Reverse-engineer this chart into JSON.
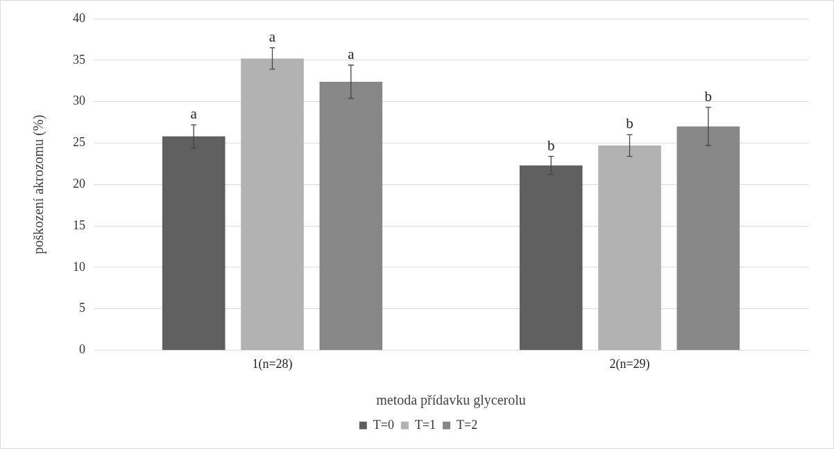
{
  "chart_data": {
    "type": "bar",
    "xlabel": "metoda přídavku glycerolu",
    "ylabel": "poškození akrozomu (%)",
    "categories": [
      "1(n=28)",
      "2(n=29)"
    ],
    "series": [
      {
        "name": "T=0",
        "color": "#5f5f5f",
        "values": [
          25.8,
          22.3
        ],
        "errors": [
          1.4,
          1.1
        ],
        "value_labels": [
          "a",
          "b"
        ]
      },
      {
        "name": "T=1",
        "color": "#b2b2b2",
        "values": [
          35.2,
          24.7
        ],
        "errors": [
          1.3,
          1.3
        ],
        "value_labels": [
          "a",
          "b"
        ]
      },
      {
        "name": "T=2",
        "color": "#878787",
        "values": [
          32.4,
          27.0
        ],
        "errors": [
          2.0,
          2.3
        ],
        "value_labels": [
          "a",
          "b"
        ]
      }
    ],
    "ylim": [
      0,
      40
    ],
    "yticks": [
      0,
      5,
      10,
      15,
      20,
      25,
      30,
      35,
      40
    ],
    "grid": "y",
    "legend": "bottom"
  }
}
